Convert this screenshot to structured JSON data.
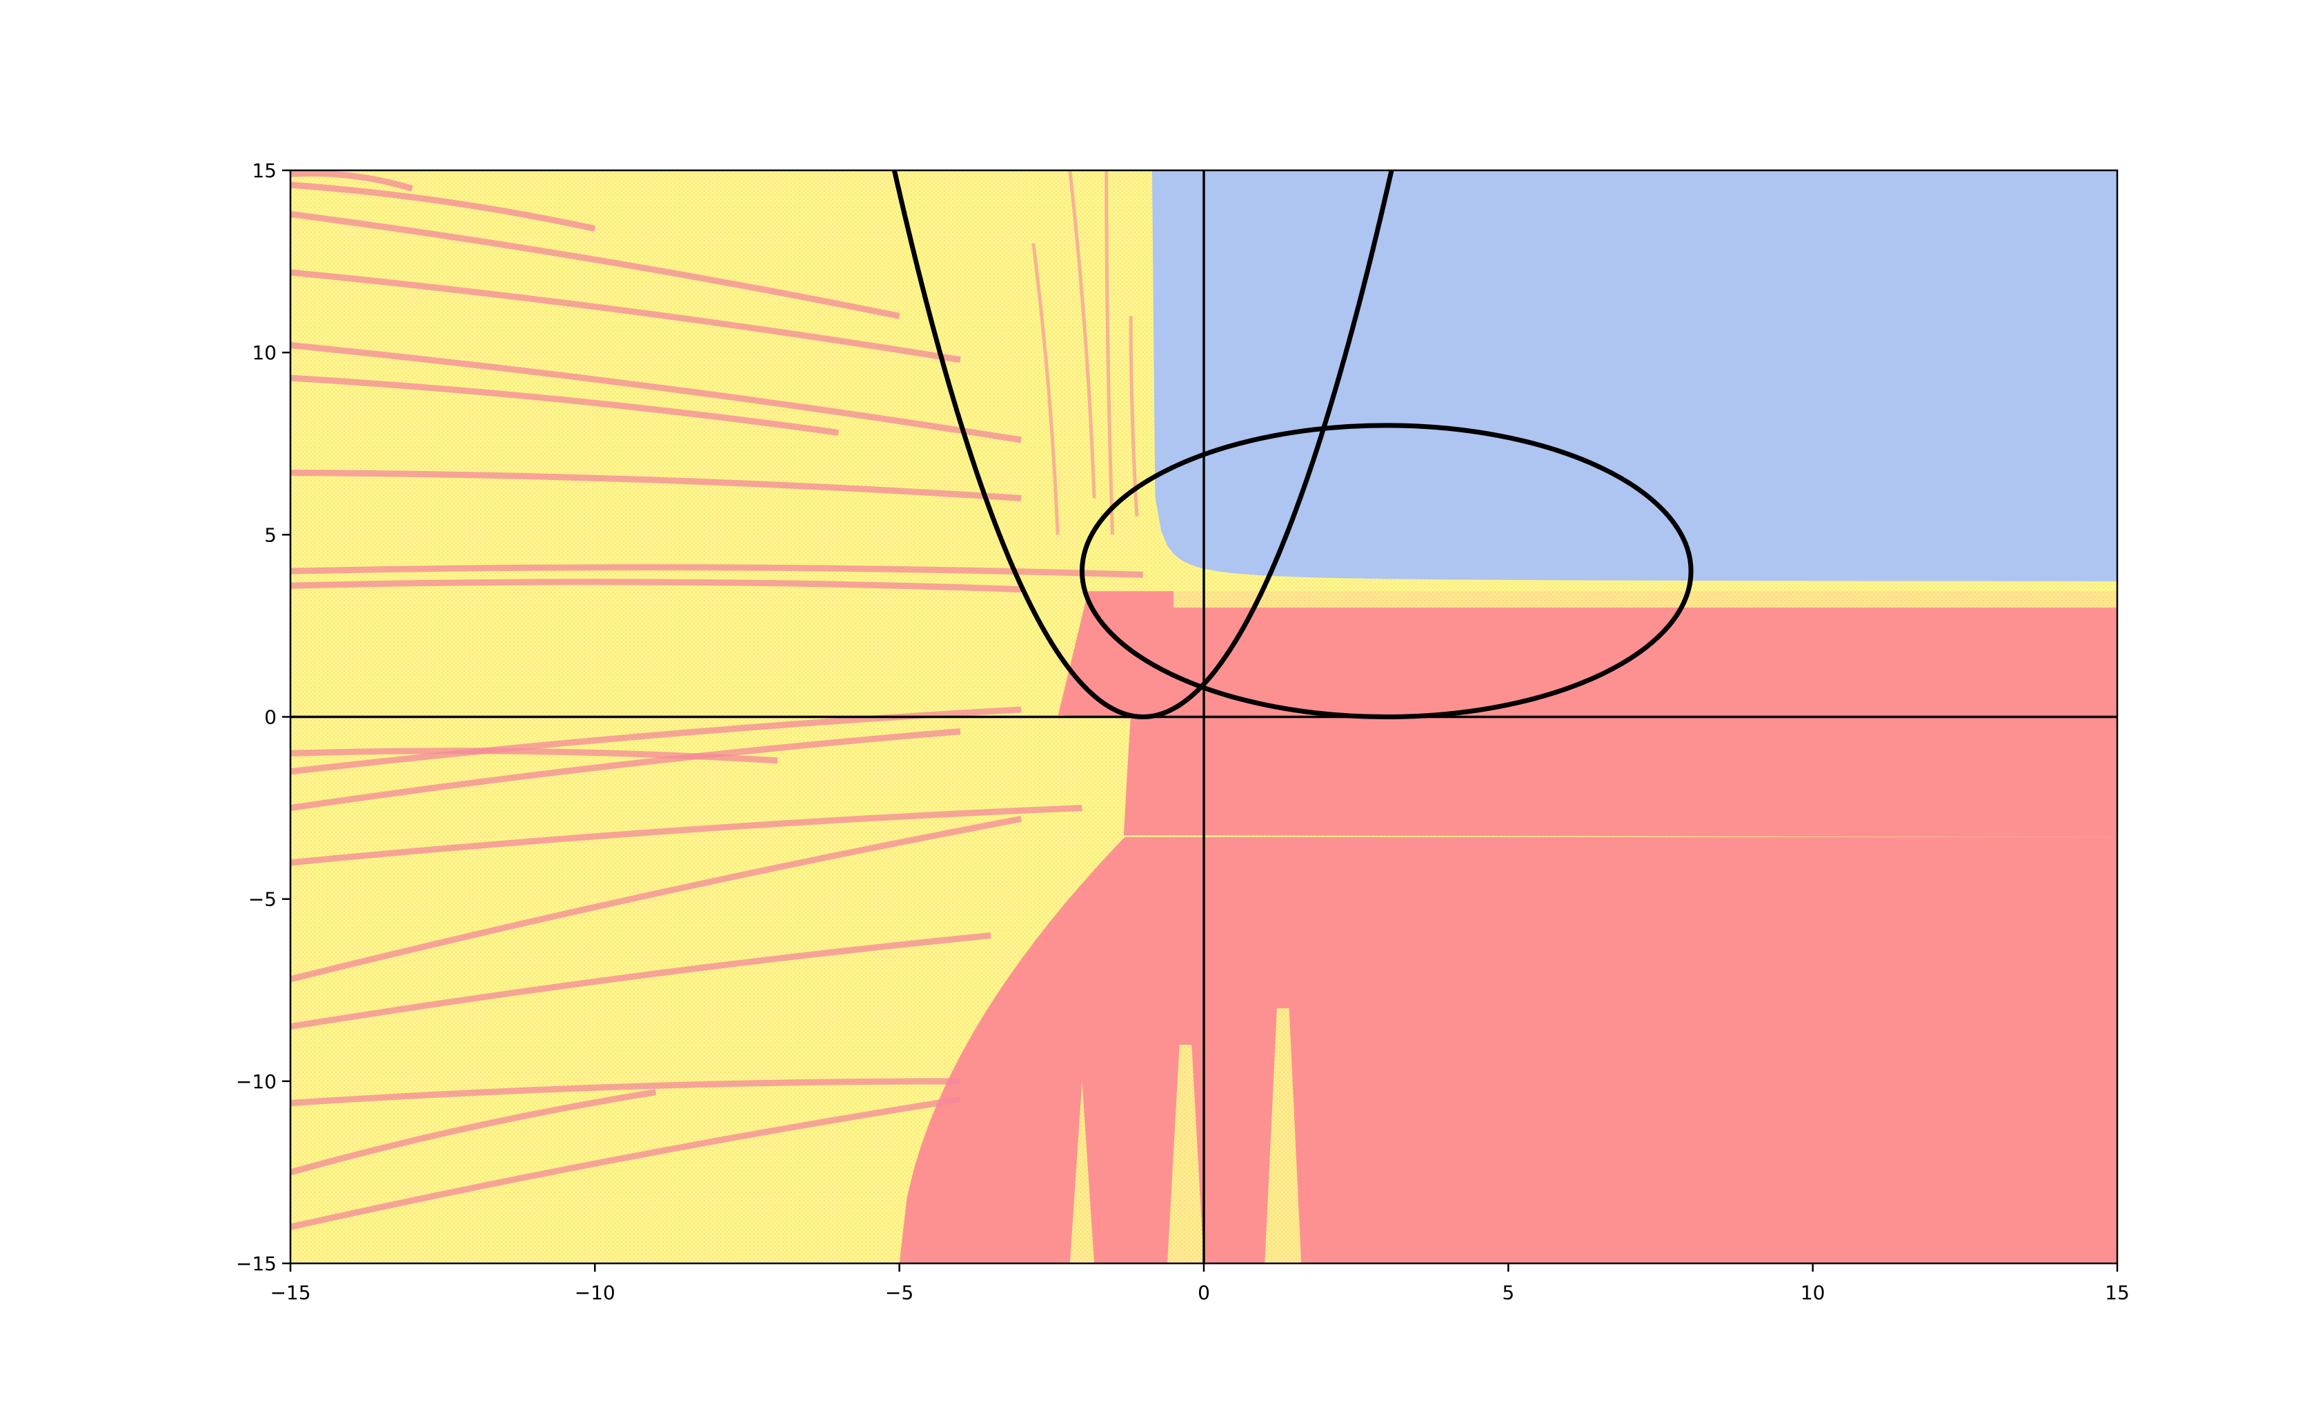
{
  "chart_data": {
    "type": "heatmap",
    "title": "",
    "xlabel": "",
    "ylabel": "",
    "xlim": [
      -15,
      15
    ],
    "ylim": [
      -15,
      15
    ],
    "grid": false,
    "legend": "none",
    "x_ticks": [
      {
        "value": -15,
        "label": "−15"
      },
      {
        "value": -10,
        "label": "−10"
      },
      {
        "value": -5,
        "label": "−5"
      },
      {
        "value": 0,
        "label": "0"
      },
      {
        "value": 5,
        "label": "5"
      },
      {
        "value": 10,
        "label": "10"
      },
      {
        "value": 15,
        "label": "15"
      }
    ],
    "y_ticks": [
      {
        "value": -15,
        "label": "−15"
      },
      {
        "value": -10,
        "label": "−10"
      },
      {
        "value": -5,
        "label": "−5"
      },
      {
        "value": 0,
        "label": "0"
      },
      {
        "value": 5,
        "label": "5"
      },
      {
        "value": 10,
        "label": "10"
      },
      {
        "value": 15,
        "label": "15"
      }
    ],
    "colors": {
      "yellow": "#fdf68a",
      "pink": "#f3889a",
      "red": "#fd9192",
      "blue": "#aec4f1",
      "curve": "#000000"
    },
    "regions": {
      "blue_region": {
        "x_from": -0.8,
        "x_to": 15,
        "y_from": 3.7,
        "y_to": 15
      },
      "band_y": 3.45,
      "red_lower_band_y": 3.0
    },
    "axes_lines": [
      {
        "orientation": "horizontal",
        "value": 0
      },
      {
        "orientation": "vertical",
        "value": 0
      }
    ],
    "parabola": {
      "vertex_x": -1,
      "vertex_y": 0,
      "coefficient": 0.9
    },
    "ellipse": {
      "cx": 3,
      "cy": 4,
      "rx": 5,
      "ry": 4
    }
  }
}
